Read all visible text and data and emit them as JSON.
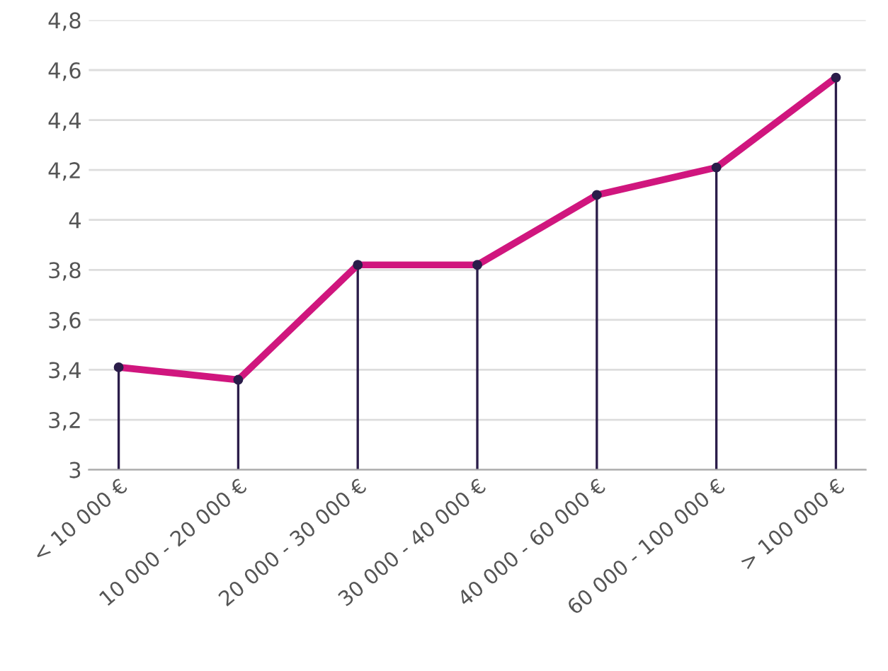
{
  "chart_data": {
    "type": "line",
    "categories": [
      "< 10 000 €",
      "10 000 - 20 000 €",
      "20 000 - 30 000 €",
      "30 000 - 40 000 €",
      "40 000 - 60 000 €",
      "60 000 - 100 000 €",
      "> 100 000 €"
    ],
    "series": [
      {
        "type": "lollipop",
        "color": "#2b1d4a",
        "values": [
          3.41,
          3.36,
          3.82,
          3.82,
          4.1,
          4.21,
          4.57
        ]
      },
      {
        "color": "#d0167e",
        "values": [
          3.41,
          3.36,
          3.82,
          3.82,
          4.1,
          4.21,
          4.57
        ]
      }
    ],
    "ylim": [
      3,
      4.8
    ],
    "yticks": [
      {
        "value": 3,
        "label": "3"
      },
      {
        "value": 3.2,
        "label": "3,2"
      },
      {
        "value": 3.4,
        "label": "3,4"
      },
      {
        "value": 3.6,
        "label": "3,6"
      },
      {
        "value": 3.8,
        "label": "3,8"
      },
      {
        "value": 4,
        "label": "4"
      },
      {
        "value": 4.2,
        "label": "4,2"
      },
      {
        "value": 4.4,
        "label": "4,4"
      },
      {
        "value": 4.6,
        "label": "4,6"
      },
      {
        "value": 4.8,
        "label": "4,8"
      }
    ],
    "grid": "y",
    "line_style": "solid"
  }
}
